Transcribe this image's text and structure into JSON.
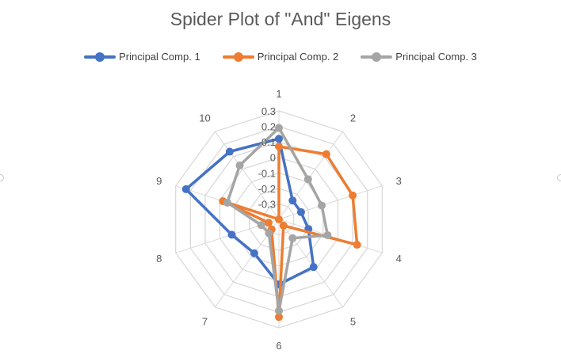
{
  "chart_data": {
    "type": "radar",
    "title": "Spider Plot of \"And\" Eigens",
    "categories": [
      "1",
      "2",
      "3",
      "4",
      "5",
      "6",
      "7",
      "8",
      "9",
      "10"
    ],
    "axis_ticks": [
      "0.3",
      "0.2",
      "0.1",
      "0",
      "-0.1",
      "-0.2",
      "-0.3"
    ],
    "rlim": [
      -0.4,
      0.3
    ],
    "grid": true,
    "legend_position": "top",
    "series": [
      {
        "name": "Principal Comp. 1",
        "color": "#4472C4",
        "values": [
          0.12,
          -0.25,
          -0.25,
          -0.2,
          -0.02,
          0.02,
          -0.13,
          -0.08,
          0.23,
          0.14
        ]
      },
      {
        "name": "Principal Comp. 2",
        "color": "#ED7D31",
        "values": [
          0.07,
          0.12,
          0.1,
          0.13,
          -0.35,
          0.23,
          -0.32,
          -0.33,
          -0.02,
          -0.4
        ]
      },
      {
        "name": "Principal Comp. 3",
        "color": "#A5A5A5",
        "values": [
          0.19,
          -0.08,
          -0.11,
          -0.07,
          -0.25,
          0.19,
          -0.29,
          -0.28,
          -0.05,
          0.03
        ]
      }
    ]
  }
}
